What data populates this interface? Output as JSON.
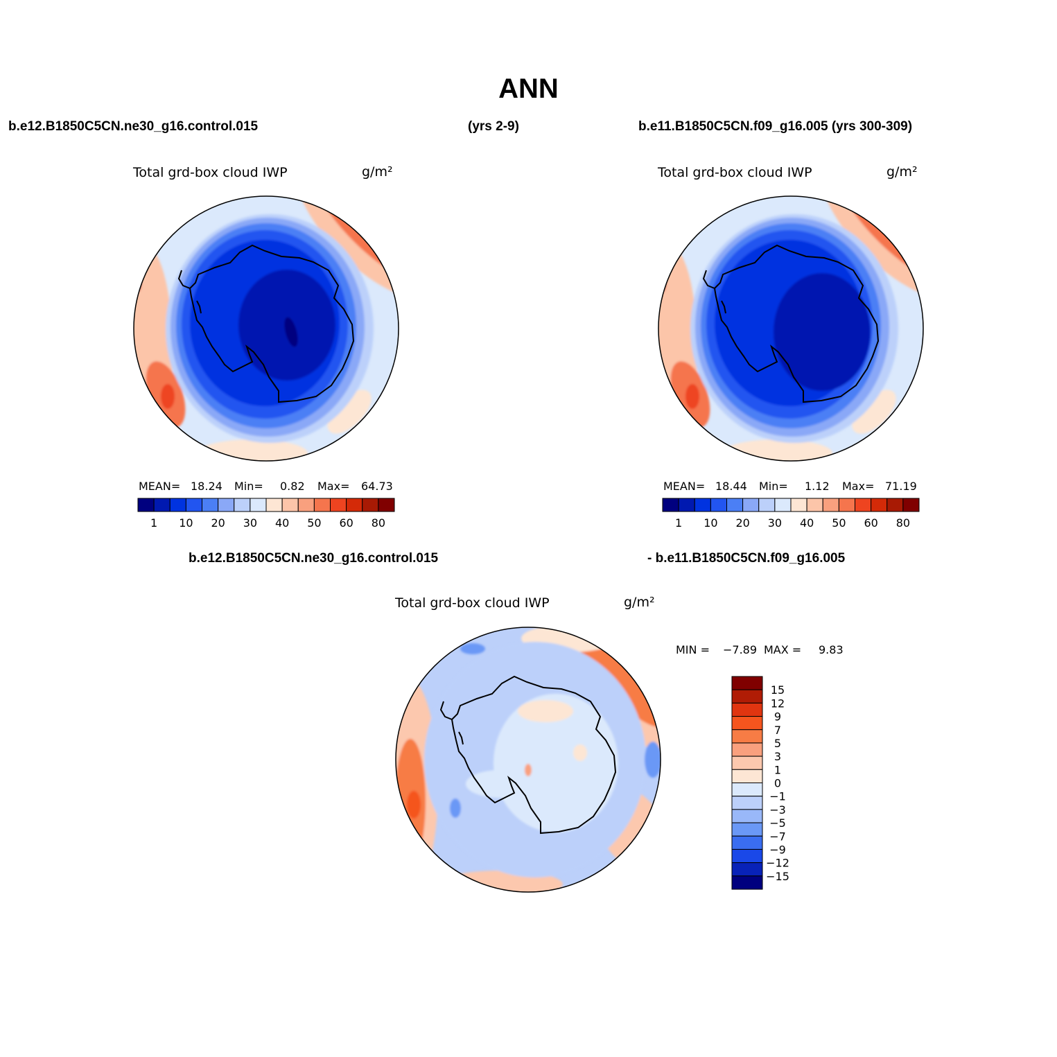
{
  "season": "ANN",
  "header": {
    "case1": "b.e12.B1850C5CN.ne30_g16.control.015",
    "years1": "(yrs 2-9)",
    "case2": "b.e11.B1850C5CN.f09_g16.005 (yrs 300-309)"
  },
  "diff_header": {
    "left": "b.e12.B1850C5CN.ne30_g16.control.015",
    "right": "- b.e11.B1850C5CN.f09_g16.005"
  },
  "colors": {
    "abs_scale": [
      "#00007f",
      "#0019b0",
      "#0033e0",
      "#2255f0",
      "#4b7ff5",
      "#8aa8f7",
      "#bcd0fa",
      "#dbe9fc",
      "#fde6d4",
      "#fcc5a9",
      "#f9a07e",
      "#f5754d",
      "#ee4420",
      "#d42a08",
      "#a81a04",
      "#800000"
    ],
    "diff_scale": [
      "#800000",
      "#b01c05",
      "#e03510",
      "#f5551e",
      "#f77c45",
      "#f9a07e",
      "#fcc8ae",
      "#fde6d4",
      "#dbe9fc",
      "#bcd0fa",
      "#99b8f9",
      "#6a98f6",
      "#3a6df0",
      "#1a48e8",
      "#0822b8",
      "#00007f"
    ],
    "land_outline": "#000000"
  },
  "chart_data": [
    {
      "type": "heatmap",
      "projection": "south polar stereographic",
      "title": "Total grd-box cloud IWP",
      "units": "g/m²",
      "stats": {
        "mean_label": "MEAN=",
        "mean": "18.24",
        "min_label": "Min=",
        "min": "0.82",
        "max_label": "Max=",
        "max": "64.73"
      },
      "colorbar_ticks": [
        "1",
        "10",
        "20",
        "30",
        "40",
        "50",
        "60",
        "80"
      ]
    },
    {
      "type": "heatmap",
      "projection": "south polar stereographic",
      "title": "Total grd-box cloud IWP",
      "units": "g/m²",
      "stats": {
        "mean_label": "MEAN=",
        "mean": "18.44",
        "min_label": "Min=",
        "min": "1.12",
        "max_label": "Max=",
        "max": "71.19"
      },
      "colorbar_ticks": [
        "1",
        "10",
        "20",
        "30",
        "40",
        "50",
        "60",
        "80"
      ]
    },
    {
      "type": "heatmap",
      "projection": "south polar stereographic",
      "title": "Total grd-box cloud IWP",
      "units": "g/m²",
      "stats": {
        "min_label": "MIN =",
        "min": "−7.89",
        "max_label": "MAX =",
        "max": "9.83"
      },
      "colorbar_ticks": [
        "15",
        "12",
        "9",
        "7",
        "5",
        "3",
        "1",
        "0",
        "−1",
        "−3",
        "−5",
        "−7",
        "−9",
        "−12",
        "−15"
      ]
    }
  ]
}
